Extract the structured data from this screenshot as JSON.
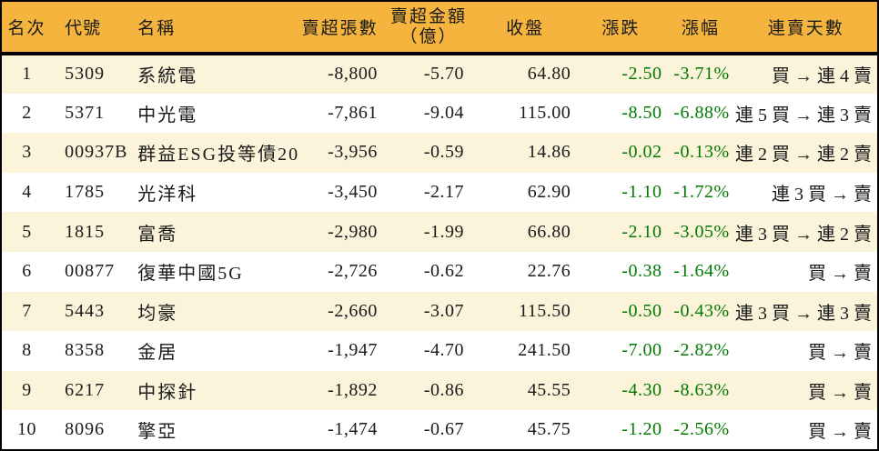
{
  "colors": {
    "header_bg": "#F4B43E",
    "row_alt_bg": "#FCF3DB",
    "row_bg": "#FFFFFF",
    "negative_green": "#007A00",
    "border": "#000000",
    "text": "#1A1A1A"
  },
  "chart_data": {
    "type": "table",
    "columns": [
      {
        "key": "rank",
        "label": "名次"
      },
      {
        "key": "code",
        "label": "代號"
      },
      {
        "key": "name",
        "label": "名稱"
      },
      {
        "key": "vol",
        "label": "賣超張數"
      },
      {
        "key": "amt",
        "label": "賣超金額",
        "label2": "（億）"
      },
      {
        "key": "close",
        "label": "收盤"
      },
      {
        "key": "chg",
        "label": "漲跌"
      },
      {
        "key": "pct",
        "label": "漲幅"
      },
      {
        "key": "streak",
        "label": "連賣天數"
      }
    ],
    "rows": [
      [
        "1",
        "5309",
        "系統電",
        "-8,800",
        "-5.70",
        "64.80",
        "-2.50",
        "-3.71%",
        "買 → 連 4 賣"
      ],
      [
        "2",
        "5371",
        "中光電",
        "-7,861",
        "-9.04",
        "115.00",
        "-8.50",
        "-6.88%",
        "連 5 買 → 連 3 賣"
      ],
      [
        "3",
        "00937B",
        "群益ESG投等債20",
        "-3,956",
        "-0.59",
        "14.86",
        "-0.02",
        "-0.13%",
        "連 2 買 → 連 2 賣"
      ],
      [
        "4",
        "1785",
        "光洋科",
        "-3,450",
        "-2.17",
        "62.90",
        "-1.10",
        "-1.72%",
        "連 3 買 → 賣"
      ],
      [
        "5",
        "1815",
        "富喬",
        "-2,980",
        "-1.99",
        "66.80",
        "-2.10",
        "-3.05%",
        "連 3 買 → 連 2 賣"
      ],
      [
        "6",
        "00877",
        "復華中國5G",
        "-2,726",
        "-0.62",
        "22.76",
        "-0.38",
        "-1.64%",
        "買 → 賣"
      ],
      [
        "7",
        "5443",
        "均豪",
        "-2,660",
        "-3.07",
        "115.50",
        "-0.50",
        "-0.43%",
        "連 3 買 → 連 3 賣"
      ],
      [
        "8",
        "8358",
        "金居",
        "-1,947",
        "-4.70",
        "241.50",
        "-7.00",
        "-2.82%",
        "買 → 賣"
      ],
      [
        "9",
        "6217",
        "中探針",
        "-1,892",
        "-0.86",
        "45.55",
        "-4.30",
        "-8.63%",
        "買 → 賣"
      ],
      [
        "10",
        "8096",
        "擎亞",
        "-1,474",
        "-0.67",
        "45.75",
        "-1.20",
        "-2.56%",
        "買 → 賣"
      ]
    ]
  }
}
